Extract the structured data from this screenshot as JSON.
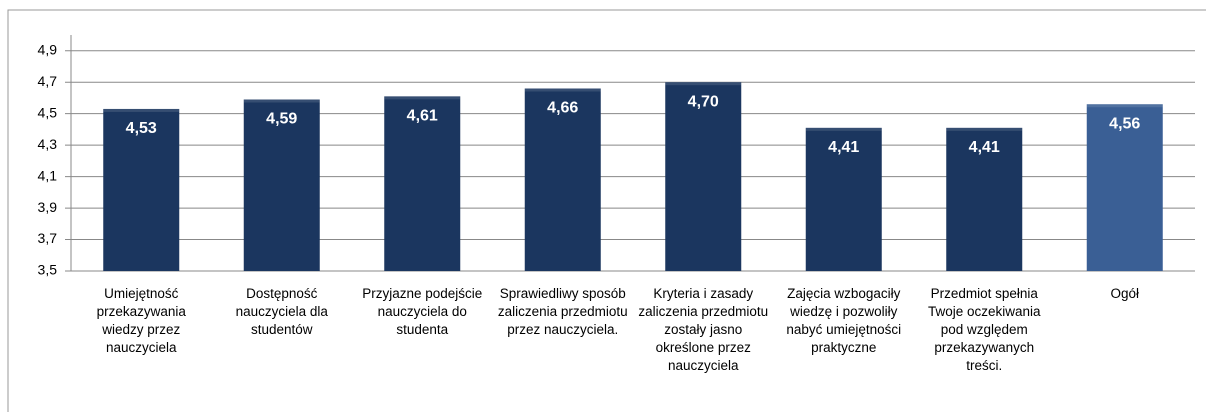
{
  "chart_data": {
    "type": "bar",
    "categories": [
      "Umiejętność przekazywania wiedzy przez nauczyciela",
      "Dostępność nauczyciela dla studentów",
      "Przyjazne podejście nauczyciela do studenta",
      "Sprawiedliwy sposób zaliczenia przedmiotu przez nauczyciela.",
      "Kryteria i zasady zaliczenia przedmiotu zostały jasno określone przez nauczyciela",
      "Zajęcia wzbogaciły wiedzę i pozwoliły nabyć umiejętności praktyczne",
      "Przedmiot spełnia Twoje oczekiwania pod względem przekazywanych treści.",
      "Ogół"
    ],
    "values": [
      4.53,
      4.59,
      4.61,
      4.66,
      4.7,
      4.41,
      4.41,
      4.56
    ],
    "value_labels": [
      "4,53",
      "4,59",
      "4,61",
      "4,66",
      "4,70",
      "4,41",
      "4,41",
      "4,56"
    ],
    "colors": [
      "#1b365f",
      "#1b365f",
      "#1b365f",
      "#1b365f",
      "#1b365f",
      "#1b365f",
      "#1b365f",
      "#3a5f95"
    ],
    "ylim": [
      3.5,
      5.0
    ],
    "yticks": [
      {
        "value": 3.5,
        "label": "3,5"
      },
      {
        "value": 3.7,
        "label": "3,7"
      },
      {
        "value": 3.9,
        "label": "3,9"
      },
      {
        "value": 4.1,
        "label": "4,1"
      },
      {
        "value": 4.3,
        "label": "4,3"
      },
      {
        "value": 4.5,
        "label": "4,5"
      },
      {
        "value": 4.7,
        "label": "4,7"
      },
      {
        "value": 4.9,
        "label": "4,9"
      }
    ],
    "grid": true
  }
}
